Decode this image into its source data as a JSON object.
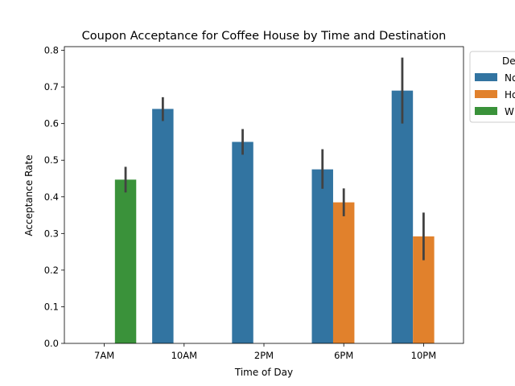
{
  "chart_data": {
    "type": "bar",
    "title": "Coupon Acceptance for Coffee House by Time and Destination",
    "xlabel": "Time of Day",
    "ylabel": "Acceptance Rate",
    "categories": [
      "7AM",
      "10AM",
      "2PM",
      "6PM",
      "10PM"
    ],
    "ylim": [
      0,
      0.81
    ],
    "yticks": [
      0.0,
      0.1,
      0.2,
      0.3,
      0.4,
      0.5,
      0.6,
      0.7,
      0.8
    ],
    "ytick_labels": [
      "0.0",
      "0.1",
      "0.2",
      "0.3",
      "0.4",
      "0.5",
      "0.6",
      "0.7",
      "0.8"
    ],
    "grid": false,
    "legend": {
      "title": "De",
      "placement": "right, clipped at edge"
    },
    "series": [
      {
        "name": "No",
        "color": "#3274a1",
        "values": [
          null,
          0.64,
          0.55,
          0.475,
          0.69
        ],
        "ci_low": [
          null,
          0.607,
          0.515,
          0.422,
          0.6
        ],
        "ci_high": [
          null,
          0.672,
          0.585,
          0.53,
          0.78
        ]
      },
      {
        "name": "Ho",
        "color": "#e1812c",
        "values": [
          null,
          null,
          null,
          0.385,
          0.292
        ],
        "ci_low": [
          null,
          null,
          null,
          0.347,
          0.227
        ],
        "ci_high": [
          null,
          null,
          null,
          0.423,
          0.357
        ]
      },
      {
        "name": "W",
        "color": "#3a923a",
        "values": [
          0.447,
          null,
          null,
          null,
          null
        ],
        "ci_low": [
          0.412,
          null,
          null,
          null,
          null
        ],
        "ci_high": [
          0.482,
          null,
          null,
          null,
          null
        ]
      }
    ]
  }
}
